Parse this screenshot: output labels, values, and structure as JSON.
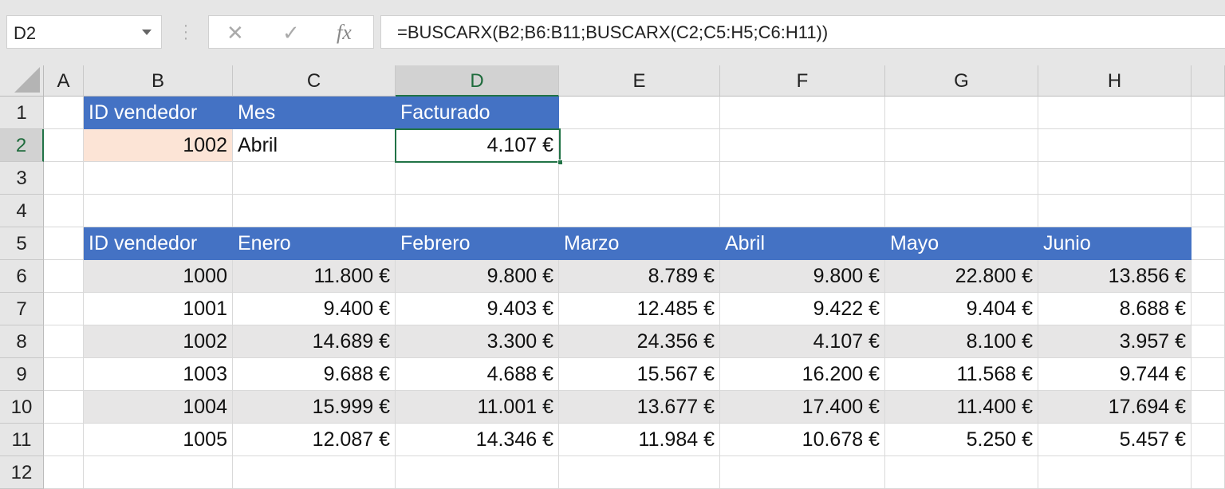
{
  "name_box": {
    "value": "D2"
  },
  "formula_bar": {
    "cancel_icon": "✕",
    "enter_icon": "✓",
    "fx_label": "fx",
    "formula": "=BUSCARX(B2;B6:B11;BUSCARX(C2;C5:H5;C6:H11))"
  },
  "columns": [
    "A",
    "B",
    "C",
    "D",
    "E",
    "F",
    "G",
    "H"
  ],
  "rows": [
    "1",
    "2",
    "3",
    "4",
    "5",
    "6",
    "7",
    "8",
    "9",
    "10",
    "11",
    "12"
  ],
  "selected_cell": "D2",
  "lookup": {
    "headers": [
      "ID vendedor",
      "Mes",
      "Facturado"
    ],
    "values": [
      "1002",
      "Abril",
      "4.107 €"
    ]
  },
  "table": {
    "headers": [
      "ID vendedor",
      "Enero",
      "Febrero",
      "Marzo",
      "Abril",
      "Mayo",
      "Junio"
    ],
    "rows": [
      [
        "1000",
        "11.800 €",
        "9.800 €",
        "8.789 €",
        "9.800 €",
        "22.800 €",
        "13.856 €"
      ],
      [
        "1001",
        "9.400 €",
        "9.403 €",
        "12.485 €",
        "9.422 €",
        "9.404 €",
        "8.688 €"
      ],
      [
        "1002",
        "14.689 €",
        "3.300 €",
        "24.356 €",
        "4.107 €",
        "8.100 €",
        "3.957 €"
      ],
      [
        "1003",
        "9.688 €",
        "4.688 €",
        "15.567 €",
        "16.200 €",
        "11.568 €",
        "9.744 €"
      ],
      [
        "1004",
        "15.999 €",
        "11.001 €",
        "13.677 €",
        "17.400 €",
        "11.400 €",
        "17.694 €"
      ],
      [
        "1005",
        "12.087 €",
        "14.346 €",
        "11.984 €",
        "10.678 €",
        "5.250 €",
        "5.457 €"
      ]
    ]
  },
  "colors": {
    "header_fill": "#4472c4",
    "band_fill": "#e7e6e6",
    "input_fill": "#fce4d6",
    "selection": "#217346"
  }
}
